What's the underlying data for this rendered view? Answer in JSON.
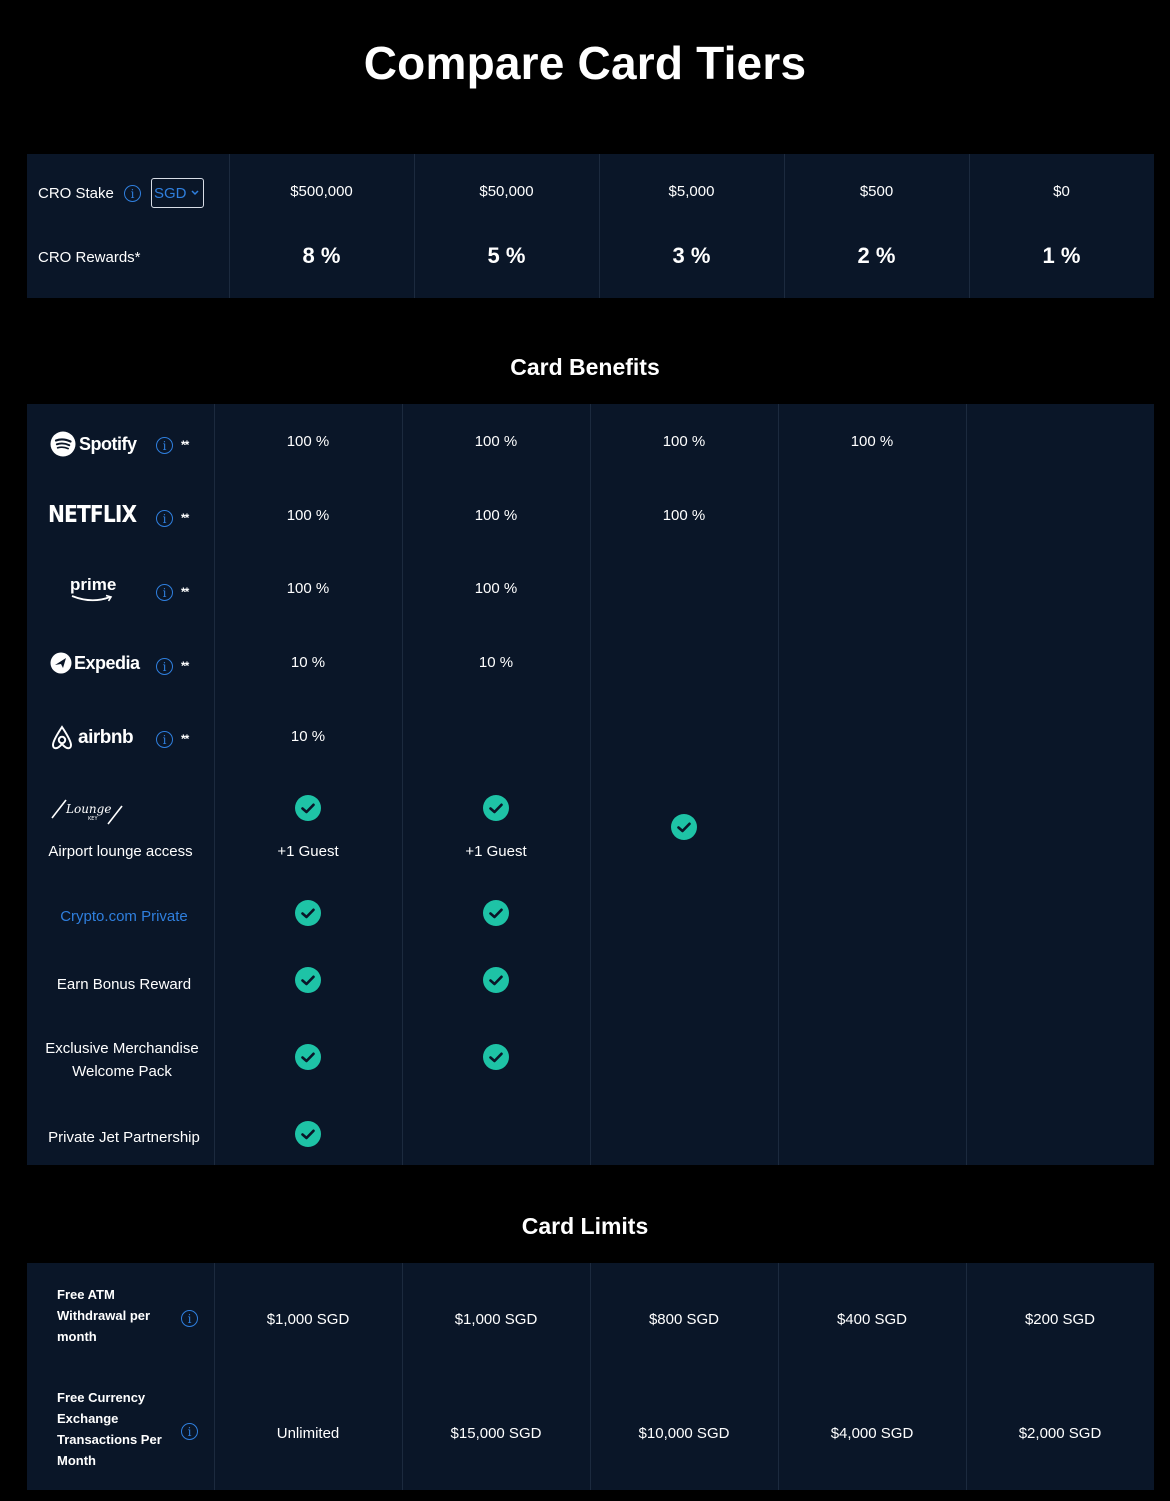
{
  "page_title": "Compare Card Tiers",
  "colors": {
    "panel": "#0a1628",
    "accent_blue": "#2f7fde",
    "check_green": "#1ec3a6"
  },
  "stake_table": {
    "stake_label": "CRO Stake",
    "currency_selected": "SGD",
    "rewards_label": "CRO Rewards*",
    "stakes": [
      "$500,000",
      "$50,000",
      "$5,000",
      "$500",
      "$0"
    ],
    "rewards": [
      "8 %",
      "5 %",
      "3 %",
      "2 %",
      "1 %"
    ]
  },
  "benefits": {
    "title": "Card Benefits",
    "stars": "**",
    "spotify": {
      "logo_text": "Spotify",
      "values": [
        "100 %",
        "100 %",
        "100 %",
        "100 %"
      ]
    },
    "netflix": {
      "logo_text": "NETFLIX",
      "values": [
        "100 %",
        "100 %",
        "100 %"
      ]
    },
    "prime": {
      "logo_text": "prime",
      "values": [
        "100 %",
        "100 %"
      ]
    },
    "expedia": {
      "logo_text": "Expedia",
      "values": [
        "10 %",
        "10 %"
      ]
    },
    "airbnb": {
      "logo_text": "airbnb",
      "values": [
        "10 %"
      ]
    },
    "lounge": {
      "logo_text": "Lounge",
      "logo_sub": "KEY",
      "label": "Airport lounge access",
      "guest": "+1 Guest"
    },
    "private": {
      "label": "Crypto.com Private"
    },
    "bonus": {
      "label": "Earn Bonus Reward"
    },
    "merch": {
      "label_line1": "Exclusive Merchandise",
      "label_line2": "Welcome Pack"
    },
    "jet": {
      "label": "Private Jet Partnership"
    }
  },
  "limits": {
    "title": "Card Limits",
    "atm": {
      "label_lines": [
        "Free ATM",
        "Withdrawal per",
        "month"
      ],
      "values": [
        "$1,000 SGD",
        "$1,000 SGD",
        "$800 SGD",
        "$400 SGD",
        "$200 SGD"
      ]
    },
    "fx": {
      "label_lines": [
        "Free Currency",
        "Exchange",
        "Transactions Per",
        "Month"
      ],
      "values": [
        "Unlimited",
        "$15,000 SGD",
        "$10,000 SGD",
        "$4,000 SGD",
        "$2,000 SGD"
      ]
    }
  }
}
